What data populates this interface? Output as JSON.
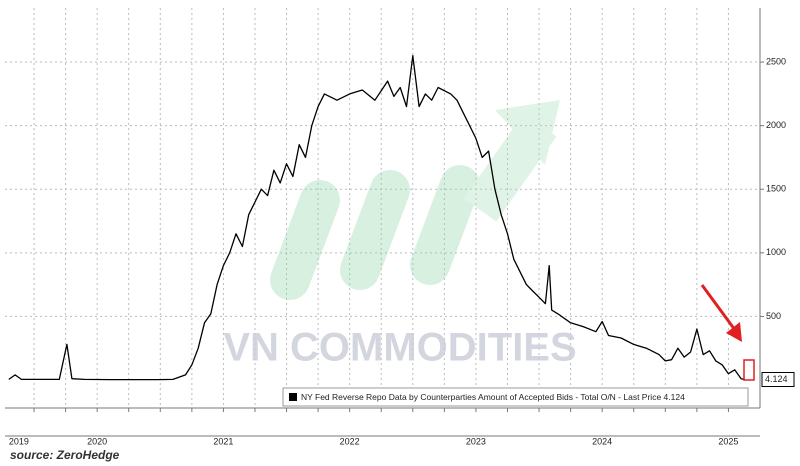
{
  "chart_data": {
    "type": "line",
    "x": [
      2019.8,
      2019.85,
      2019.9,
      2020.0,
      2020.1,
      2020.2,
      2020.26,
      2020.3,
      2020.4,
      2020.6,
      2020.8,
      2021.0,
      2021.1,
      2021.2,
      2021.25,
      2021.3,
      2021.35,
      2021.4,
      2021.45,
      2021.5,
      2021.55,
      2021.6,
      2021.65,
      2021.7,
      2021.75,
      2021.8,
      2021.85,
      2021.9,
      2021.95,
      2022.0,
      2022.05,
      2022.1,
      2022.15,
      2022.2,
      2022.25,
      2022.3,
      2022.4,
      2022.5,
      2022.6,
      2022.7,
      2022.8,
      2022.85,
      2022.9,
      2022.95,
      2023.0,
      2023.05,
      2023.1,
      2023.15,
      2023.2,
      2023.3,
      2023.35,
      2023.4,
      2023.45,
      2023.5,
      2023.55,
      2023.6,
      2023.65,
      2023.7,
      2023.75,
      2023.8,
      2023.85,
      2023.9,
      2023.95,
      2024.0,
      2024.05,
      2024.08,
      2024.1,
      2024.15,
      2024.25,
      2024.35,
      2024.45,
      2024.5,
      2024.55,
      2024.65,
      2024.75,
      2024.85,
      2024.95,
      2025.0,
      2025.05,
      2025.1,
      2025.15,
      2025.2,
      2025.25,
      2025.3,
      2025.35,
      2025.4,
      2025.45,
      2025.5,
      2025.55,
      2025.6,
      2025.63
    ],
    "series": [
      {
        "name": "NY Fed Reverse Repo Data by Counterparties Amount of Accepted Bids - Total O/N - Last Price 4.124",
        "color": "#000000",
        "values": [
          5,
          40,
          5,
          5,
          5,
          5,
          280,
          10,
          5,
          3,
          3,
          3,
          5,
          40,
          120,
          250,
          450,
          520,
          750,
          900,
          1000,
          1150,
          1050,
          1300,
          1400,
          1500,
          1450,
          1650,
          1550,
          1700,
          1600,
          1850,
          1750,
          2000,
          2150,
          2250,
          2200,
          2250,
          2280,
          2200,
          2350,
          2230,
          2300,
          2150,
          2550,
          2150,
          2250,
          2200,
          2300,
          2250,
          2200,
          2100,
          2000,
          1900,
          1750,
          1800,
          1500,
          1300,
          1150,
          950,
          850,
          750,
          700,
          650,
          600,
          900,
          550,
          520,
          450,
          420,
          380,
          460,
          350,
          330,
          280,
          250,
          200,
          150,
          160,
          250,
          180,
          220,
          400,
          200,
          230,
          150,
          120,
          50,
          80,
          10,
          4.124
        ]
      }
    ],
    "xlim": [
      2019.77,
      2025.75
    ],
    "ylim": [
      -220,
      2925
    ],
    "yticks": [
      500,
      1000,
      1500,
      2000,
      2500
    ],
    "xticks": [
      {
        "value": 2019.88,
        "label": "2019"
      },
      {
        "value": 2020.5,
        "label": "2020"
      },
      {
        "value": 2021.5,
        "label": "2021"
      },
      {
        "value": 2022.5,
        "label": "2022"
      },
      {
        "value": 2023.5,
        "label": "2023"
      },
      {
        "value": 2024.5,
        "label": "2024"
      },
      {
        "value": 2025.5,
        "label": "2025"
      }
    ],
    "xgrid": [
      2020.0,
      2020.25,
      2020.5,
      2020.75,
      2021.0,
      2021.25,
      2021.5,
      2021.75,
      2022.0,
      2022.25,
      2022.5,
      2022.75,
      2023.0,
      2023.25,
      2023.5,
      2023.75,
      2024.0,
      2024.25,
      2024.5,
      2024.75,
      2025.0,
      2025.25,
      2025.5
    ],
    "grid": true,
    "last_price": 4.124,
    "watermark": "VN COMMODITIES",
    "source": "source: ZeroHedge"
  }
}
